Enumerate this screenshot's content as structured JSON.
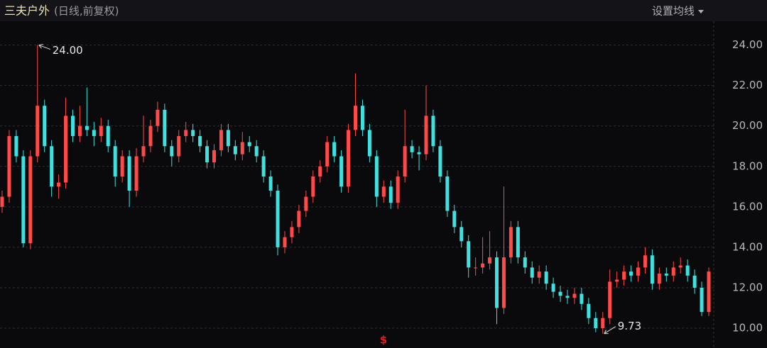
{
  "chart_data": {
    "type": "candlestick",
    "title": "三夫户外",
    "subtitle": "(日线,前复权)",
    "button": "设置均线",
    "up_color": "#ff4a4a",
    "down_color": "#3fe0e0",
    "ylim": [
      9.3,
      24.3
    ],
    "yticks": [
      {
        "value": 10,
        "label": "10.00"
      },
      {
        "value": 12,
        "label": "12.00"
      },
      {
        "value": 14,
        "label": "14.00"
      },
      {
        "value": 16,
        "label": "16.00"
      },
      {
        "value": 18,
        "label": "18.00"
      },
      {
        "value": 20,
        "label": "20.00"
      },
      {
        "value": 22,
        "label": "22.00"
      },
      {
        "value": 24,
        "label": "24.00"
      }
    ],
    "grid": true,
    "annotations": [
      {
        "label": "24.00",
        "value": 24
      },
      {
        "label": "9.73",
        "value": 9.73
      }
    ],
    "marker": "$",
    "ohlc": [
      [
        16.0,
        16.8,
        15.7,
        16.5
      ],
      [
        16.5,
        19.8,
        16.2,
        19.5
      ],
      [
        19.5,
        19.8,
        18.2,
        18.5
      ],
      [
        18.5,
        18.8,
        14.0,
        14.2
      ],
      [
        14.2,
        18.8,
        13.9,
        18.5
      ],
      [
        18.5,
        24.0,
        18.2,
        21.0
      ],
      [
        21.0,
        21.3,
        18.7,
        19.0
      ],
      [
        19.0,
        19.3,
        16.5,
        17.0
      ],
      [
        17.0,
        17.6,
        16.4,
        17.2
      ],
      [
        17.2,
        21.4,
        16.9,
        20.5
      ],
      [
        20.5,
        20.8,
        19.2,
        19.5
      ],
      [
        19.5,
        21.0,
        19.2,
        20.0
      ],
      [
        20.0,
        21.9,
        19.5,
        19.8
      ],
      [
        19.8,
        20.2,
        19.0,
        19.5
      ],
      [
        19.5,
        20.4,
        19.2,
        20.0
      ],
      [
        20.0,
        20.3,
        18.7,
        19.0
      ],
      [
        19.0,
        19.3,
        17.0,
        17.5
      ],
      [
        17.5,
        18.8,
        17.2,
        18.5
      ],
      [
        18.5,
        18.8,
        16.0,
        16.8
      ],
      [
        16.8,
        18.9,
        16.5,
        18.5
      ],
      [
        18.5,
        20.5,
        18.2,
        19.0
      ],
      [
        19.0,
        20.3,
        18.7,
        20.0
      ],
      [
        20.0,
        21.2,
        19.7,
        20.8
      ],
      [
        20.8,
        21.1,
        18.7,
        19.0
      ],
      [
        19.0,
        19.3,
        18.0,
        18.5
      ],
      [
        18.5,
        19.8,
        18.2,
        19.5
      ],
      [
        19.5,
        20.2,
        19.2,
        19.8
      ],
      [
        19.8,
        20.1,
        19.2,
        19.5
      ],
      [
        19.5,
        19.8,
        18.7,
        19.0
      ],
      [
        19.0,
        19.3,
        17.9,
        18.2
      ],
      [
        18.2,
        19.1,
        17.9,
        18.8
      ],
      [
        18.8,
        20.1,
        18.5,
        19.8
      ],
      [
        19.8,
        20.1,
        18.7,
        19.0
      ],
      [
        19.0,
        19.3,
        18.3,
        18.6
      ],
      [
        18.6,
        19.7,
        18.3,
        19.2
      ],
      [
        19.2,
        19.5,
        18.7,
        19.0
      ],
      [
        19.0,
        19.3,
        18.2,
        18.5
      ],
      [
        18.5,
        18.8,
        17.2,
        17.5
      ],
      [
        17.5,
        17.8,
        16.5,
        16.8
      ],
      [
        16.8,
        17.1,
        13.6,
        14.0
      ],
      [
        14.0,
        14.8,
        13.7,
        14.5
      ],
      [
        14.5,
        15.3,
        14.2,
        15.0
      ],
      [
        15.0,
        16.1,
        14.7,
        15.8
      ],
      [
        15.8,
        16.8,
        15.5,
        16.5
      ],
      [
        16.5,
        17.8,
        16.2,
        17.5
      ],
      [
        17.5,
        18.3,
        17.2,
        18.0
      ],
      [
        18.0,
        19.5,
        17.7,
        19.2
      ],
      [
        19.2,
        19.5,
        18.2,
        18.5
      ],
      [
        18.5,
        18.8,
        16.7,
        17.0
      ],
      [
        17.0,
        20.1,
        16.7,
        19.8
      ],
      [
        19.8,
        22.6,
        19.5,
        21.0
      ],
      [
        21.0,
        21.3,
        19.5,
        19.8
      ],
      [
        19.8,
        20.1,
        18.2,
        18.5
      ],
      [
        18.5,
        18.8,
        16.0,
        16.5
      ],
      [
        16.5,
        17.3,
        16.2,
        17.0
      ],
      [
        17.0,
        17.3,
        15.9,
        16.2
      ],
      [
        16.2,
        17.8,
        15.9,
        17.5
      ],
      [
        17.5,
        20.8,
        17.2,
        19.0
      ],
      [
        19.0,
        19.3,
        18.4,
        18.7
      ],
      [
        18.7,
        19.0,
        17.8,
        18.6
      ],
      [
        18.6,
        22.0,
        18.3,
        20.5
      ],
      [
        20.5,
        20.8,
        18.7,
        19.0
      ],
      [
        19.0,
        19.3,
        17.2,
        17.5
      ],
      [
        17.5,
        17.8,
        15.5,
        15.8
      ],
      [
        15.8,
        16.1,
        14.7,
        15.0
      ],
      [
        15.0,
        15.3,
        14.0,
        14.3
      ],
      [
        14.3,
        14.6,
        12.5,
        13.0
      ],
      [
        13.0,
        13.5,
        12.6,
        13.0
      ],
      [
        13.0,
        14.5,
        12.7,
        13.2
      ],
      [
        13.2,
        14.8,
        12.9,
        13.5
      ],
      [
        13.5,
        13.8,
        10.2,
        11.0
      ],
      [
        11.0,
        17.0,
        10.7,
        13.5
      ],
      [
        13.5,
        15.3,
        13.2,
        15.0
      ],
      [
        15.0,
        15.3,
        13.2,
        13.5
      ],
      [
        13.5,
        13.8,
        12.7,
        13.0
      ],
      [
        13.0,
        13.3,
        12.2,
        12.5
      ],
      [
        12.5,
        13.1,
        12.2,
        12.8
      ],
      [
        12.8,
        13.1,
        11.9,
        12.2
      ],
      [
        12.2,
        12.5,
        11.5,
        11.8
      ],
      [
        11.8,
        12.1,
        11.3,
        11.6
      ],
      [
        11.6,
        11.9,
        11.2,
        11.5
      ],
      [
        11.5,
        12.0,
        11.2,
        11.7
      ],
      [
        11.7,
        12.0,
        10.9,
        11.2
      ],
      [
        11.2,
        11.5,
        10.2,
        10.5
      ],
      [
        10.5,
        10.8,
        9.8,
        10.0
      ],
      [
        10.0,
        10.8,
        9.73,
        10.5
      ],
      [
        10.5,
        12.9,
        10.2,
        12.3
      ],
      [
        12.3,
        12.8,
        12.0,
        12.4
      ],
      [
        12.4,
        13.1,
        12.1,
        12.8
      ],
      [
        12.8,
        13.1,
        12.3,
        12.6
      ],
      [
        12.6,
        13.3,
        12.3,
        13.0
      ],
      [
        13.0,
        14.0,
        12.7,
        13.6
      ],
      [
        13.6,
        13.9,
        11.9,
        12.2
      ],
      [
        12.2,
        13.0,
        11.9,
        12.7
      ],
      [
        12.7,
        13.0,
        12.3,
        12.6
      ],
      [
        12.6,
        13.3,
        12.3,
        13.0
      ],
      [
        13.0,
        13.5,
        12.7,
        13.1
      ],
      [
        13.1,
        13.4,
        12.3,
        12.6
      ],
      [
        12.6,
        12.9,
        11.7,
        12.0
      ],
      [
        12.0,
        12.3,
        10.6,
        10.8
      ],
      [
        10.8,
        13.0,
        10.6,
        12.8
      ]
    ]
  }
}
